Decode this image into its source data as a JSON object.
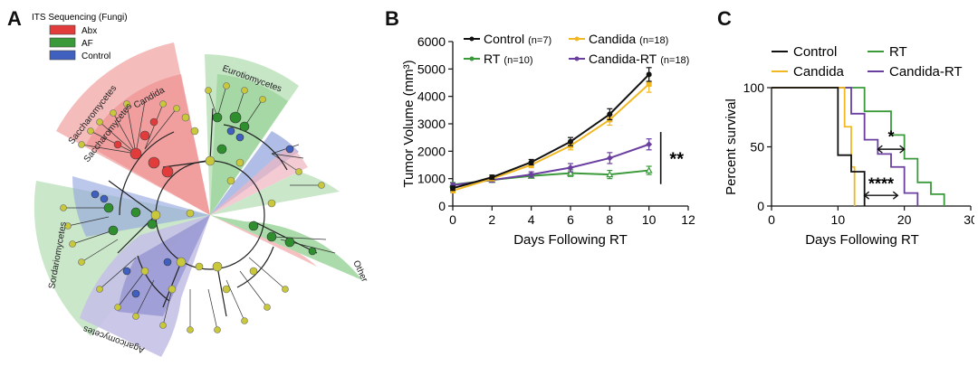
{
  "figure": {
    "panel_a": {
      "letter": "A",
      "legend_title": "ITS Sequencing (Fungi)",
      "legend": [
        {
          "label": "Abx",
          "color": "#e23b3b"
        },
        {
          "label": "AF",
          "color": "#3a9a3a"
        },
        {
          "label": "Control",
          "color": "#4060c0"
        }
      ],
      "clade_labels": [
        "Saccharomycetes",
        "Saccharomycetes",
        "Candida",
        "Eurotiomycetes",
        "Sordariomycetes",
        "Agaricomycetes",
        "Other"
      ]
    },
    "panel_b": {
      "letter": "B"
    },
    "panel_c": {
      "letter": "C"
    }
  },
  "chart_data": [
    {
      "type": "line",
      "title": "",
      "xlabel": "Days Following RT",
      "ylabel": "Tumor Volume (mm³)",
      "xlim": [
        0,
        12
      ],
      "ylim": [
        0,
        6000
      ],
      "xticks": [
        0,
        2,
        4,
        6,
        8,
        10,
        12
      ],
      "yticks": [
        0,
        1000,
        2000,
        3000,
        4000,
        5000,
        6000
      ],
      "x": [
        0,
        2,
        4,
        6,
        8,
        10
      ],
      "series": [
        {
          "name": "Control",
          "n": "(n=7)",
          "color": "#111111",
          "values": [
            650,
            1050,
            1600,
            2350,
            3350,
            4800
          ],
          "err": [
            80,
            80,
            100,
            150,
            200,
            250
          ]
        },
        {
          "name": "Candida",
          "n": "(n=18)",
          "color": "#f2b824",
          "values": [
            560,
            1000,
            1500,
            2200,
            3150,
            4450
          ],
          "err": [
            80,
            80,
            100,
            150,
            200,
            300
          ]
        },
        {
          "name": "RT",
          "n": "(n=10)",
          "color": "#3a9a3a",
          "values": [
            780,
            950,
            1100,
            1200,
            1150,
            1300
          ],
          "err": [
            80,
            80,
            80,
            120,
            150,
            150
          ]
        },
        {
          "name": "Candida-RT",
          "n": "(n=18)",
          "color": "#6a3fa0",
          "values": [
            760,
            950,
            1150,
            1400,
            1750,
            2250
          ],
          "err": [
            80,
            80,
            100,
            150,
            200,
            200
          ]
        }
      ],
      "annotation": "**"
    },
    {
      "type": "line",
      "subtype": "step",
      "title": "",
      "xlabel": "Days Following RT",
      "ylabel": "Percent survival",
      "xlim": [
        0,
        30
      ],
      "ylim": [
        0,
        100
      ],
      "xticks": [
        0,
        10,
        20,
        30
      ],
      "yticks": [
        0,
        50,
        100
      ],
      "series": [
        {
          "name": "Control",
          "color": "#111111",
          "x": [
            0,
            10,
            10,
            12,
            12,
            14,
            14
          ],
          "values": [
            100,
            100,
            43,
            43,
            29,
            29,
            0
          ]
        },
        {
          "name": "Candida",
          "color": "#f2b824",
          "x": [
            0,
            11,
            11,
            12,
            12,
            12.5,
            12.5
          ],
          "values": [
            100,
            100,
            67,
            67,
            33,
            33,
            0
          ]
        },
        {
          "name": "RT",
          "color": "#3a9a3a",
          "x": [
            0,
            14,
            14,
            18,
            18,
            20,
            20,
            22,
            22,
            24,
            24,
            26,
            26
          ],
          "values": [
            100,
            100,
            80,
            80,
            60,
            60,
            40,
            40,
            20,
            20,
            10,
            10,
            0
          ]
        },
        {
          "name": "Candida-RT",
          "color": "#6a3fa0",
          "x": [
            0,
            12,
            12,
            14,
            14,
            16,
            16,
            18,
            18,
            20,
            20,
            22,
            22
          ],
          "values": [
            100,
            100,
            78,
            78,
            56,
            56,
            44,
            44,
            33,
            33,
            11,
            11,
            0
          ]
        }
      ],
      "annotations": [
        "*",
        "****"
      ]
    }
  ]
}
